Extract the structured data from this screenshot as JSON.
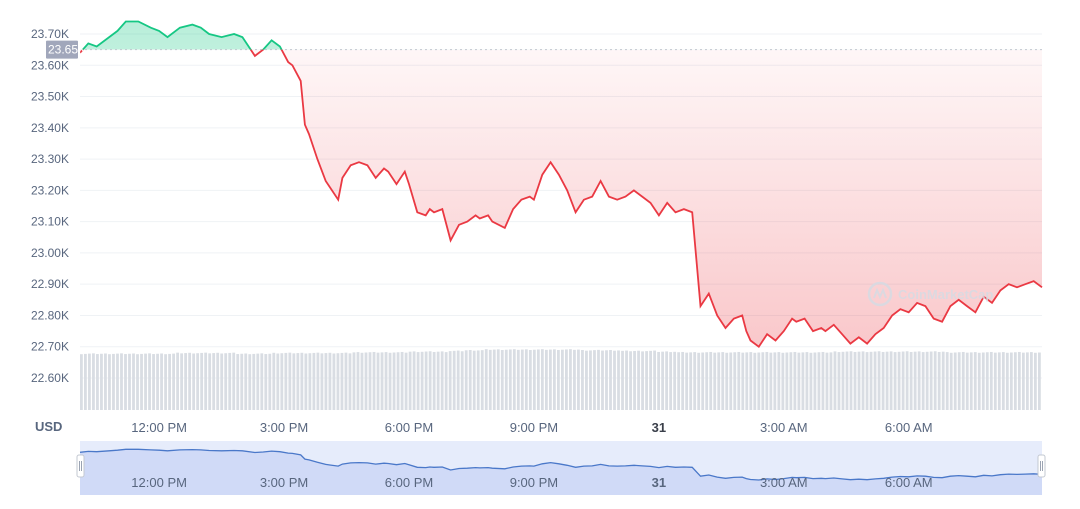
{
  "currency_label": "USD",
  "current_price_badge": "23.65K",
  "watermark": "CoinMarketCap",
  "watermark_icon": "coinmarketcap-logo-icon",
  "colors": {
    "up": "#16c784",
    "down": "#ea3943",
    "volume": "#d9dde3",
    "navigator_fill": "#e6ecfb",
    "navigator_line": "#4a78c9",
    "badge": "#a1a7bb",
    "grid": "#eff2f5"
  },
  "chart_data": {
    "type": "line",
    "ylim": [
      22.5,
      23.75
    ],
    "y_ticks": [
      "23.70K",
      "23.60K",
      "23.50K",
      "23.40K",
      "23.30K",
      "23.20K",
      "23.10K",
      "23.00K",
      "22.90K",
      "22.80K",
      "22.70K",
      "22.60K"
    ],
    "y_tick_values": [
      23.7,
      23.6,
      23.5,
      23.4,
      23.3,
      23.2,
      23.1,
      23.0,
      22.9,
      22.8,
      22.7,
      22.6
    ],
    "x_ticks": [
      {
        "label": "12:00 PM",
        "hour": 12,
        "bold": false
      },
      {
        "label": "3:00 PM",
        "hour": 15,
        "bold": false
      },
      {
        "label": "6:00 PM",
        "hour": 18,
        "bold": false
      },
      {
        "label": "9:00 PM",
        "hour": 21,
        "bold": false
      },
      {
        "label": "31",
        "hour": 24,
        "bold": true
      },
      {
        "label": "3:00 AM",
        "hour": 27,
        "bold": false
      },
      {
        "label": "6:00 AM",
        "hour": 30,
        "bold": false
      }
    ],
    "x_range_hours": [
      10.1,
      33.2
    ],
    "baseline": 23.65,
    "series": [
      {
        "hours": [
          10.1,
          10.3,
          10.5,
          10.8,
          11.0,
          11.2,
          11.5,
          11.8,
          12.0,
          12.2,
          12.5,
          12.8,
          13.0,
          13.2,
          13.5,
          13.8,
          14.0,
          14.3,
          14.5,
          14.7,
          14.9,
          15.1,
          15.2,
          15.4,
          15.5,
          15.6,
          15.8,
          16.0,
          16.1,
          16.3,
          16.4,
          16.6,
          16.8,
          17.0,
          17.2,
          17.4,
          17.5,
          17.7,
          17.9,
          18.0,
          18.2,
          18.4,
          18.5,
          18.6,
          18.8,
          19.0,
          19.2,
          19.4,
          19.6,
          19.7,
          19.9,
          20.0,
          20.3,
          20.5,
          20.7,
          20.9,
          21.0,
          21.2,
          21.4,
          21.6,
          21.8,
          22.0,
          22.2,
          22.4,
          22.6,
          22.8,
          23.0,
          23.2,
          23.4,
          23.6,
          23.8,
          24.0,
          24.2,
          24.4,
          24.6,
          24.8,
          25.0,
          25.2,
          25.4,
          25.6,
          25.8,
          26.0,
          26.1,
          26.2,
          26.4,
          26.6,
          26.8,
          27.0,
          27.2,
          27.3,
          27.5,
          27.7,
          27.9,
          28.0,
          28.2,
          28.4,
          28.6,
          28.8,
          29.0,
          29.2,
          29.4,
          29.6,
          29.8,
          30.0,
          30.2,
          30.4,
          30.6,
          30.8,
          31.0,
          31.2,
          31.4,
          31.6,
          31.8,
          32.0,
          32.2,
          32.4,
          32.6,
          32.8,
          33.0,
          33.2
        ],
        "values": [
          23.64,
          23.67,
          23.66,
          23.69,
          23.71,
          23.74,
          23.74,
          23.72,
          23.71,
          23.69,
          23.72,
          23.73,
          23.72,
          23.7,
          23.69,
          23.7,
          23.69,
          23.63,
          23.65,
          23.68,
          23.66,
          23.61,
          23.6,
          23.55,
          23.41,
          23.38,
          23.3,
          23.23,
          23.21,
          23.17,
          23.24,
          23.28,
          23.29,
          23.28,
          23.24,
          23.27,
          23.26,
          23.22,
          23.26,
          23.22,
          23.13,
          23.12,
          23.14,
          23.13,
          23.14,
          23.04,
          23.09,
          23.1,
          23.12,
          23.11,
          23.12,
          23.1,
          23.08,
          23.14,
          23.17,
          23.18,
          23.17,
          23.25,
          23.29,
          23.25,
          23.2,
          23.13,
          23.17,
          23.18,
          23.23,
          23.18,
          23.17,
          23.18,
          23.2,
          23.18,
          23.16,
          23.12,
          23.16,
          23.13,
          23.14,
          23.13,
          22.83,
          22.87,
          22.8,
          22.76,
          22.79,
          22.8,
          22.75,
          22.72,
          22.7,
          22.74,
          22.72,
          22.75,
          22.79,
          22.78,
          22.79,
          22.75,
          22.76,
          22.75,
          22.77,
          22.74,
          22.71,
          22.73,
          22.71,
          22.74,
          22.76,
          22.8,
          22.82,
          22.81,
          22.84,
          22.83,
          22.79,
          22.78,
          22.83,
          22.85,
          22.83,
          22.81,
          22.86,
          22.84,
          22.88,
          22.9,
          22.89,
          22.9,
          22.91,
          22.89
        ]
      }
    ],
    "volume": {
      "relative_values": [
        0.8,
        0.8,
        0.8,
        0.8,
        0.8,
        0.81,
        0.81,
        0.81,
        0.8,
        0.8,
        0.81,
        0.81,
        0.81,
        0.81,
        0.82,
        0.82,
        0.82,
        0.83,
        0.83,
        0.84,
        0.85,
        0.86,
        0.86,
        0.86,
        0.86,
        0.86,
        0.85,
        0.85,
        0.84,
        0.84,
        0.83,
        0.82,
        0.82,
        0.82,
        0.82,
        0.82,
        0.82,
        0.82,
        0.82,
        0.83,
        0.83,
        0.83,
        0.83,
        0.83,
        0.83,
        0.82,
        0.82,
        0.82,
        0.82,
        0.82
      ]
    }
  }
}
